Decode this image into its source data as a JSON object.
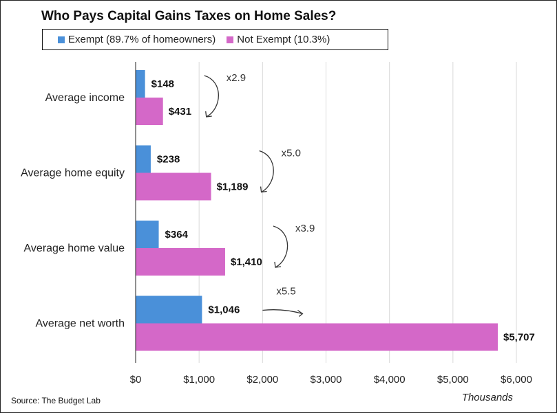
{
  "colors": {
    "exempt": "#4a90d9",
    "not_exempt": "#d468c8",
    "grid": "#d9d9d9",
    "axis": "#222222"
  },
  "chart_data": {
    "type": "bar",
    "orientation": "horizontal",
    "title": "Who Pays Capital Gains Taxes on Home Sales?",
    "categories": [
      "Average income",
      "Average home equity",
      "Average home value",
      "Average net worth"
    ],
    "series": [
      {
        "name": "Exempt (89.7% of homeowners)",
        "values": [
          148,
          238,
          364,
          1046
        ],
        "labels": [
          "$148",
          "$238",
          "$364",
          "$1,046"
        ],
        "color": "#4a90d9"
      },
      {
        "name": "Not Exempt (10.3%)",
        "values": [
          431,
          1189,
          1410,
          5707
        ],
        "labels": [
          "$431",
          "$1,189",
          "$1,410",
          "$5,707"
        ],
        "color": "#d468c8"
      }
    ],
    "multipliers": [
      "x2.9",
      "x5.0",
      "x3.9",
      "x5.5"
    ],
    "xlim": [
      0,
      6000
    ],
    "xticks": [
      0,
      1000,
      2000,
      3000,
      4000,
      5000,
      6000
    ],
    "xtick_labels": [
      "$0",
      "$1,000",
      "$2,000",
      "$3,000",
      "$4,000",
      "$5,000",
      "$6,000"
    ],
    "xunit": "Thousands",
    "grid": true,
    "legend_position": "top"
  },
  "legend": {
    "exempt_label": "Exempt (89.7% of homeowners)",
    "not_exempt_label": "Not Exempt (10.3%)"
  },
  "source": "Source: The Budget Lab"
}
